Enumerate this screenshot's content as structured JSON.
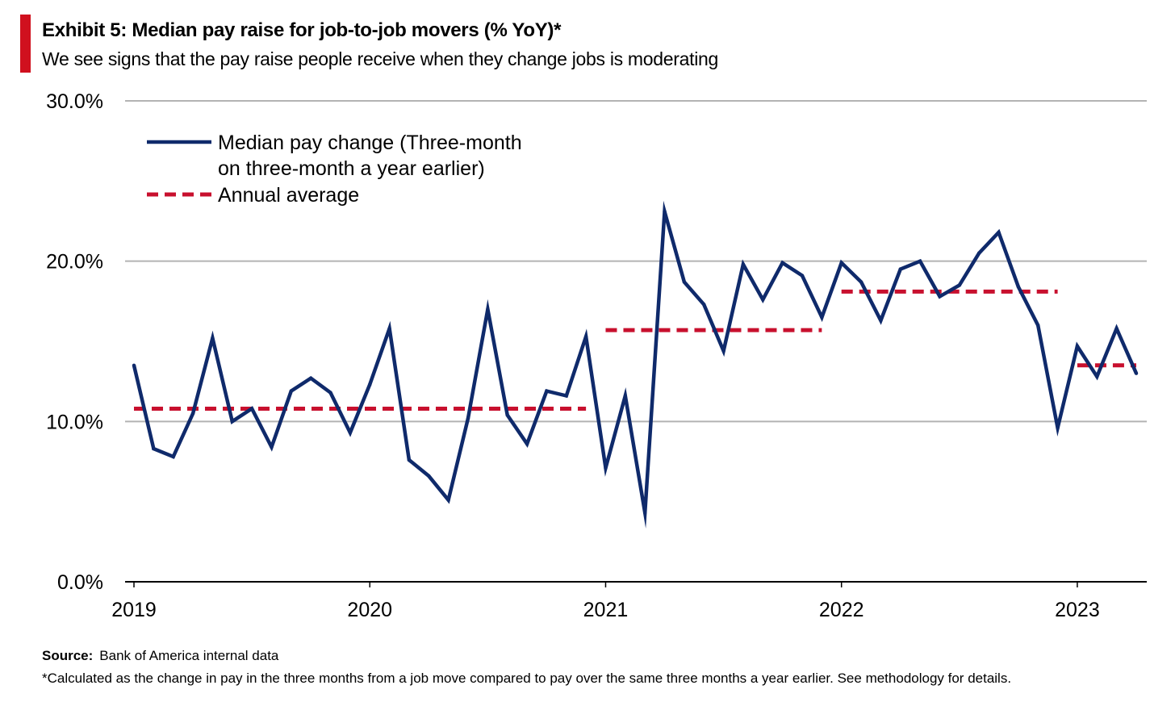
{
  "header": {
    "title": "Exhibit 5: Median pay raise for job-to-job movers (% YoY)*",
    "subtitle": "We see signs that the pay raise people receive when they change jobs is moderating"
  },
  "footer": {
    "source_label": "Source:",
    "source_text": "Bank of America internal data",
    "note": "*Calculated as the change in pay in the three months from a job move compared to pay over the same three months a year earlier. See methodology for details."
  },
  "colors": {
    "accent": "#d0101e",
    "series": "#0f2a6b",
    "average": "#c8102e",
    "grid": "#b3b3b3",
    "axis": "#000000"
  },
  "chart_data": {
    "type": "line",
    "ylim": [
      0,
      30
    ],
    "yticks": [
      {
        "value": 0,
        "label": "0.0%"
      },
      {
        "value": 10,
        "label": "10.0%"
      },
      {
        "value": 20,
        "label": "20.0%"
      },
      {
        "value": 30,
        "label": "30.0%"
      }
    ],
    "xlim": [
      0,
      51
    ],
    "xticks": [
      {
        "value": 0,
        "label": "2019"
      },
      {
        "value": 12,
        "label": "2020"
      },
      {
        "value": 24,
        "label": "2021"
      },
      {
        "value": 36,
        "label": "2022"
      },
      {
        "value": 48,
        "label": "2023"
      }
    ],
    "legend_position": "top-left",
    "series": [
      {
        "name": "Median pay change (Three-month on three-month a year earlier)",
        "legend_lines": [
          "Median pay change (Three-month",
          "on three-month a year earlier)"
        ],
        "style": "solid",
        "x": [
          0,
          1,
          2,
          3,
          4,
          5,
          6,
          7,
          8,
          9,
          10,
          11,
          12,
          13,
          14,
          15,
          16,
          17,
          18,
          19,
          20,
          21,
          22,
          23,
          24,
          25,
          26,
          27,
          28,
          29,
          30,
          31,
          32,
          33,
          34,
          35,
          36,
          37,
          38,
          39,
          40,
          41,
          42,
          43,
          44,
          45,
          46,
          47,
          48,
          49,
          50,
          51
        ],
        "values": [
          13.5,
          8.3,
          7.8,
          10.5,
          15.2,
          10.0,
          10.8,
          8.4,
          11.9,
          12.7,
          11.8,
          9.3,
          12.3,
          15.8,
          7.6,
          6.6,
          5.1,
          10.2,
          17.0,
          10.4,
          8.6,
          11.9,
          11.6,
          15.3,
          7.1,
          11.6,
          4.3,
          23.1,
          18.7,
          17.3,
          14.4,
          19.8,
          17.6,
          19.9,
          19.1,
          16.5,
          19.9,
          18.7,
          16.3,
          19.5,
          20.0,
          17.8,
          18.5,
          20.5,
          21.8,
          18.4,
          16.0,
          9.6,
          14.7,
          12.8,
          15.8,
          13.0
        ]
      },
      {
        "name": "Annual average",
        "legend_lines": [
          "Annual average"
        ],
        "style": "dashed",
        "segments": [
          {
            "x_start": 0,
            "x_end": 23,
            "value": 10.8
          },
          {
            "x_start": 24,
            "x_end": 35,
            "value": 15.7
          },
          {
            "x_start": 36,
            "x_end": 47,
            "value": 18.1
          },
          {
            "x_start": 48,
            "x_end": 51,
            "value": 13.5
          }
        ]
      }
    ]
  }
}
